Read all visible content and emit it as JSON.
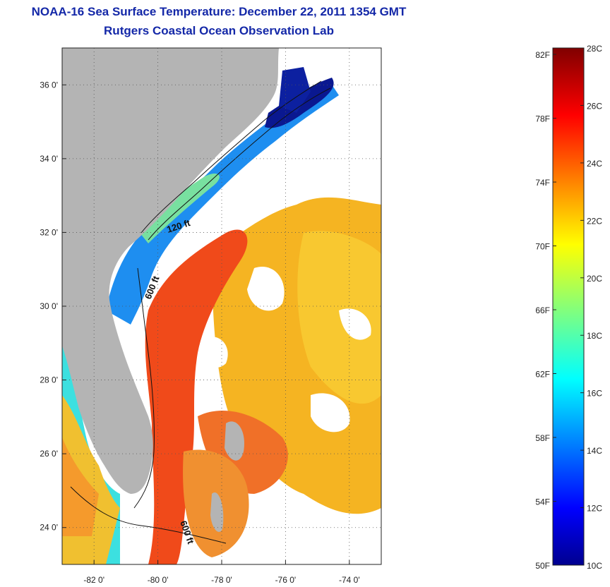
{
  "title_line1": "NOAA-16 Sea Surface Temperature:  December 22, 2011 1354 GMT",
  "title_line2": "Rutgers Coastal Ocean Observation Lab",
  "map": {
    "lon_range": [
      -83,
      -73
    ],
    "lat_range": [
      23,
      37
    ],
    "lat_ticks": [
      {
        "value": 36,
        "label": "36 0'"
      },
      {
        "value": 34,
        "label": "34 0'"
      },
      {
        "value": 32,
        "label": "32 0'"
      },
      {
        "value": 30,
        "label": "30 0'"
      },
      {
        "value": 28,
        "label": "28 0'"
      },
      {
        "value": 26,
        "label": "26 0'"
      },
      {
        "value": 24,
        "label": "24 0'"
      }
    ],
    "lon_ticks": [
      {
        "value": -82,
        "label": "-82 0'"
      },
      {
        "value": -80,
        "label": "-80 0'"
      },
      {
        "value": -78,
        "label": "-78 0'"
      },
      {
        "value": -76,
        "label": "-76 0'"
      },
      {
        "value": -74,
        "label": "-74 0'"
      }
    ],
    "contour_labels": [
      "120 ft",
      "600 ft",
      "600 ft"
    ],
    "colors": {
      "land": "#b4b4b4",
      "cloud": "#ffffff",
      "gulf_stream": "#f04418",
      "offshore": "#f5a81e",
      "shelf_cold": "#1e6cf0",
      "coast_frigid": "#0a1890"
    }
  },
  "colorbar": {
    "left_labels": [
      "82F",
      "78F",
      "74F",
      "70F",
      "66F",
      "62F",
      "58F",
      "54F",
      "50F"
    ],
    "right_labels": [
      "28C",
      "26C",
      "24C",
      "22C",
      "20C",
      "18C",
      "16C",
      "14C",
      "12C",
      "10C"
    ],
    "colormap": "jet",
    "range_c": [
      10,
      28
    ]
  }
}
